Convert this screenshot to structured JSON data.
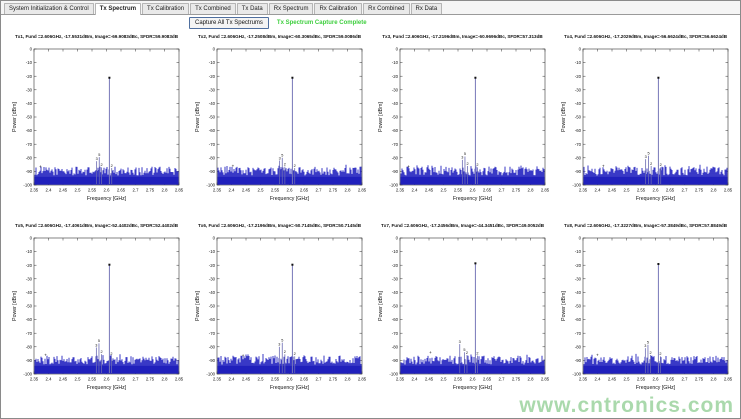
{
  "tabs": {
    "items": [
      "System Initialization & Control",
      "Tx Spectrum",
      "Tx Calibration",
      "Tx Combined",
      "Tx Data",
      "Rx Spectrum",
      "Rx Calibration",
      "Rx Combined",
      "Rx Data"
    ],
    "selected": "Tx Spectrum"
  },
  "controls": {
    "capture_button": "Capture All Tx Spectrums",
    "status_text": "Tx Spectrum Capture Complete",
    "status_color": "#3fcf3f"
  },
  "watermark": {
    "text": "www.cntronics.com",
    "color": "#aad9ac"
  },
  "chart_data": {
    "type": "line",
    "xlabel": "Frequency [GHz]",
    "ylabel": "Power [dBm]",
    "xlim": [
      2.35,
      2.85
    ],
    "ylim": [
      -100,
      0
    ],
    "xtick_labels": [
      "2.35",
      "2.4",
      "2.45",
      "2.5",
      "2.55",
      "2.6",
      "2.65",
      "2.7",
      "2.75",
      "2.8",
      "2.85"
    ],
    "ytick_values": [
      0,
      -10,
      -20,
      -30,
      -40,
      -50,
      -60,
      -70,
      -80,
      -90,
      -100
    ],
    "grid": false,
    "line_color": "#2323c0",
    "noise_base_color": "#12129e",
    "noise_floor_dbm": -94,
    "noise_tip_range_dbm": [
      -86.5,
      -93
    ],
    "plots": [
      {
        "name": "Tx1",
        "title": "Tx1, Fund =2.606GHz, -17.5531dBm, Image=-69.9083dBc, SFDR=59.9083dB",
        "fundamental_ghz": 2.61,
        "peak_plot_dbm": -21.5,
        "spurs": [
          {
            "f": 2.566,
            "p": -82.5,
            "label": "3"
          },
          {
            "f": 2.575,
            "p": -79.5,
            "label": "5"
          },
          {
            "f": 2.583,
            "p": -87,
            "label": "2"
          },
          {
            "f": 2.618,
            "p": -87.5,
            "label": "2"
          }
        ],
        "markers": [
          {
            "f": 2.372,
            "p": -86.5
          }
        ]
      },
      {
        "name": "Tx2",
        "title": "Tx2, Fund =2.606GHz, -17.2508dBm, Image=-60.3065dBc, SFDR=59.0086dB",
        "fundamental_ghz": 2.61,
        "peak_plot_dbm": -21.5,
        "spurs": [
          {
            "f": 2.566,
            "p": -82,
            "label": "3"
          },
          {
            "f": 2.575,
            "p": -80,
            "label": "5"
          },
          {
            "f": 2.584,
            "p": -86.5,
            "label": "2"
          },
          {
            "f": 2.618,
            "p": -87.5,
            "label": "2"
          }
        ],
        "markers": [
          {
            "f": 2.405,
            "p": -86
          }
        ]
      },
      {
        "name": "Tx3",
        "title": "Tx3, Fund =2.606GHz, -17.2196dBm, Image=-60.9696dBc, SFDR=57.313dB",
        "fundamental_ghz": 2.61,
        "peak_plot_dbm": -21.5,
        "spurs": [
          {
            "f": 2.565,
            "p": -81.5,
            "label": "3"
          },
          {
            "f": 2.574,
            "p": -79,
            "label": "5"
          },
          {
            "f": 2.583,
            "p": -86,
            "label": "2"
          },
          {
            "f": 2.617,
            "p": -87,
            "label": "2"
          }
        ],
        "markers": [
          {
            "f": 2.38,
            "p": -86.5
          }
        ]
      },
      {
        "name": "Tx4",
        "title": "Tx4, Fund =2.606GHz, -17.2029dBm, Image=-56.6624dBc, SFDR=56.6624dB",
        "fundamental_ghz": 2.61,
        "peak_plot_dbm": -21.5,
        "spurs": [
          {
            "f": 2.566,
            "p": -81,
            "label": "3"
          },
          {
            "f": 2.576,
            "p": -78.5,
            "label": "5"
          },
          {
            "f": 2.585,
            "p": -86,
            "label": "2"
          },
          {
            "f": 2.618,
            "p": -87,
            "label": "2"
          }
        ],
        "markers": [
          {
            "f": 2.42,
            "p": -86
          }
        ]
      },
      {
        "name": "Tx5",
        "title": "Tx5, Fund =2.606GHz, -17.4061dBm, Image=-52.4402dBc, SFDR=52.4402dB",
        "fundamental_ghz": 2.61,
        "peak_plot_dbm": -20,
        "spurs": [
          {
            "f": 2.565,
            "p": -80.5,
            "label": "3"
          },
          {
            "f": 2.574,
            "p": -77.5,
            "label": "5"
          },
          {
            "f": 2.583,
            "p": -85.5,
            "label": "2"
          },
          {
            "f": 2.617,
            "p": -87,
            "label": "2"
          }
        ],
        "markers": [
          {
            "f": 2.39,
            "p": -86
          }
        ]
      },
      {
        "name": "Tx6",
        "title": "Tx6, Fund =2.606GHz, -17.2196dBm, Image=-50.7145dBc, SFDR=50.7145dB",
        "fundamental_ghz": 2.61,
        "peak_plot_dbm": -20,
        "spurs": [
          {
            "f": 2.565,
            "p": -80,
            "label": "3"
          },
          {
            "f": 2.575,
            "p": -77,
            "label": "5"
          },
          {
            "f": 2.584,
            "p": -85.5,
            "label": "2"
          },
          {
            "f": 2.618,
            "p": -87,
            "label": "2"
          }
        ],
        "markers": [
          {
            "f": 2.44,
            "p": -86.5
          }
        ]
      },
      {
        "name": "Tx7",
        "title": "Tx7, Fund =2.606GHz, -17.2456dBm, Image=-44.3451dBc, SFDR=49.0052dB",
        "fundamental_ghz": 2.61,
        "peak_plot_dbm": -19,
        "spurs": [
          {
            "f": 2.556,
            "p": -78,
            "label": "3"
          },
          {
            "f": 2.572,
            "p": -84,
            "label": "5"
          },
          {
            "f": 2.581,
            "p": -86,
            "label": "2"
          },
          {
            "f": 2.617,
            "p": -86.5,
            "label": "2"
          }
        ],
        "markers": [
          {
            "f": 2.455,
            "p": -84.5
          }
        ]
      },
      {
        "name": "Tx8",
        "title": "Tx8, Fund =2.606GHz, -17.3227dBm, Image=-57.3849dBc, SFDR=57.8849dB",
        "fundamental_ghz": 2.61,
        "peak_plot_dbm": -19.5,
        "spurs": [
          {
            "f": 2.565,
            "p": -81,
            "label": "3"
          },
          {
            "f": 2.574,
            "p": -78.5,
            "label": "5"
          },
          {
            "f": 2.583,
            "p": -86,
            "label": "2"
          },
          {
            "f": 2.617,
            "p": -87,
            "label": "2"
          }
        ],
        "markers": [
          {
            "f": 2.4,
            "p": -86
          }
        ]
      }
    ]
  }
}
